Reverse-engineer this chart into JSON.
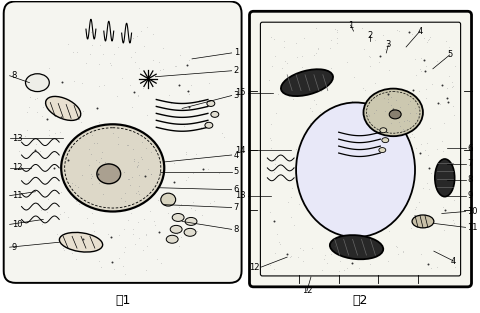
{
  "fig1_label": "图1",
  "fig2_label": "图2",
  "background_color": "#ffffff",
  "line_color": "#000000",
  "cell1_fill": "#f5f5f0",
  "nucleus_fill": "#ddd8c8",
  "nucleolus_fill": "#aaa090",
  "mito_fill": "#e8e0d0",
  "golgi_arc_color": "#000000",
  "chloro_fill": "#303030",
  "vacuole_fill": "#e8e8f8",
  "dot_color": "#888888",
  "label_fontsize": 6,
  "caption_fontsize": 9
}
